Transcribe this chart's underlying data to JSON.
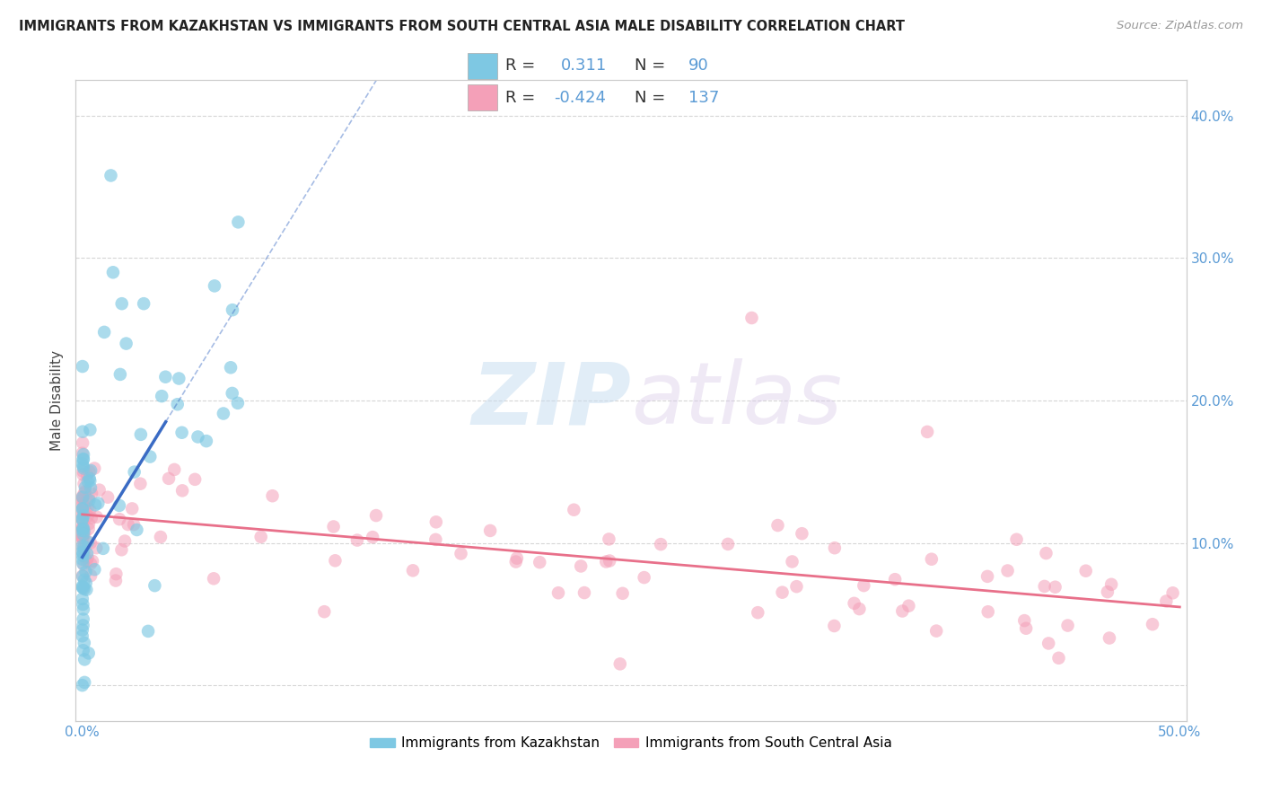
{
  "title": "IMMIGRANTS FROM KAZAKHSTAN VS IMMIGRANTS FROM SOUTH CENTRAL ASIA MALE DISABILITY CORRELATION CHART",
  "source": "Source: ZipAtlas.com",
  "ylabel": "Male Disability",
  "xlim": [
    -0.003,
    0.503
  ],
  "ylim": [
    -0.025,
    0.425
  ],
  "xticks": [
    0.0,
    0.1,
    0.2,
    0.3,
    0.4,
    0.5
  ],
  "yticks": [
    0.0,
    0.1,
    0.2,
    0.3,
    0.4
  ],
  "xtick_labels": [
    "0.0%",
    "",
    "",
    "",
    "",
    "50.0%"
  ],
  "ytick_labels_left": [
    "",
    "",
    "",
    "",
    ""
  ],
  "ytick_labels_right": [
    "",
    "10.0%",
    "20.0%",
    "30.0%",
    "40.0%"
  ],
  "blue_color": "#7EC8E3",
  "pink_color": "#F4A0B8",
  "blue_line_solid_color": "#3A6BC4",
  "pink_line_color": "#E8708A",
  "legend_blue_r": "0.311",
  "legend_blue_n": "90",
  "legend_pink_r": "-0.424",
  "legend_pink_n": "137",
  "legend1_label": "Immigrants from Kazakhstan",
  "legend2_label": "Immigrants from South Central Asia",
  "background_color": "#FFFFFF",
  "grid_color": "#CCCCCC",
  "title_color": "#222222",
  "source_color": "#999999",
  "tick_color": "#5B9BD5"
}
